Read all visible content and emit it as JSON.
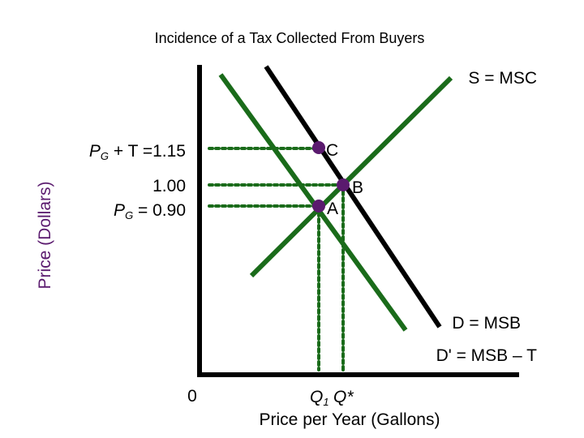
{
  "title": "Incidence of a Tax Collected From Buyers",
  "y_axis_label": "Price (Dollars)",
  "x_axis_label": "Price per Year (Gallons)",
  "origin": "0",
  "curves": {
    "supply": "S = MSC",
    "demand": "D = MSB",
    "demand_tax": "D' = MSB – T"
  },
  "points": {
    "c": "C",
    "b": "B",
    "a": "A"
  },
  "price_labels": {
    "buyer_price": {
      "symbol": "P",
      "sub": "G",
      "rest": " + T =1.15"
    },
    "equilibrium": "1.00",
    "seller_price": {
      "symbol": "P",
      "sub": "G",
      "rest": " = 0.90"
    }
  },
  "quantity_labels": {
    "q1": {
      "symbol": "Q",
      "sub": "1"
    },
    "qstar": "Q*"
  }
}
